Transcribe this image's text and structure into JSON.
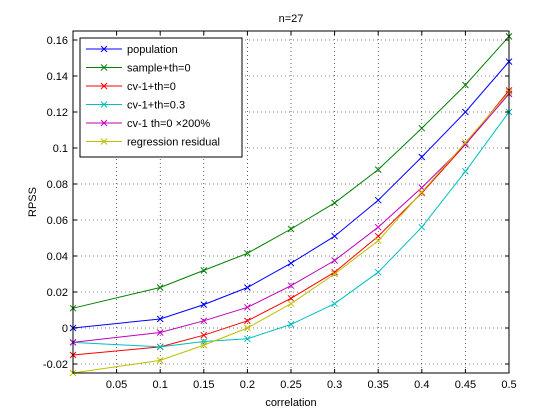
{
  "chart_data": {
    "type": "line",
    "title": "n=27",
    "xlabel": "correlation",
    "ylabel": "RPSS",
    "xlim": [
      0,
      0.5
    ],
    "ylim": [
      -0.025,
      0.165
    ],
    "grid": true,
    "legend_position": "top-left",
    "x_ticks": [
      "0.05",
      "0.1",
      "0.15",
      "0.2",
      "0.25",
      "0.3",
      "0.35",
      "0.4",
      "0.45",
      "0.5"
    ],
    "y_ticks": [
      "-0.02",
      "0",
      "0.02",
      "0.04",
      "0.06",
      "0.08",
      "0.1",
      "0.12",
      "0.14",
      "0.16"
    ],
    "x": [
      0,
      0.1,
      0.15,
      0.2,
      0.25,
      0.3,
      0.35,
      0.4,
      0.45,
      0.5
    ],
    "series": [
      {
        "name": "population",
        "color": "#0000ff",
        "values": [
          0,
          0.005,
          0.013,
          0.0225,
          0.036,
          0.051,
          0.071,
          0.095,
          0.12,
          0.148
        ]
      },
      {
        "name": "sample+th=0",
        "color": "#008000",
        "values": [
          0.011,
          0.0225,
          0.032,
          0.0415,
          0.055,
          0.0695,
          0.088,
          0.111,
          0.135,
          0.162
        ]
      },
      {
        "name": "cv-1+th=0",
        "color": "#ff0000",
        "values": [
          -0.015,
          -0.0105,
          -0.004,
          0.004,
          0.0165,
          0.031,
          0.051,
          0.075,
          0.102,
          0.132
        ]
      },
      {
        "name": "cv-1+th=0.3",
        "color": "#00bfbf",
        "values": [
          -0.008,
          -0.0105,
          -0.0075,
          -0.006,
          0.002,
          0.0135,
          0.031,
          0.056,
          0.087,
          0.12
        ]
      },
      {
        "name": "cv-1 th=0 ×200%",
        "color": "#bf00bf",
        "values": [
          -0.008,
          -0.0025,
          0.004,
          0.0115,
          0.0235,
          0.0375,
          0.056,
          0.078,
          0.102,
          0.13
        ]
      },
      {
        "name": "regression residual",
        "color": "#bfbf00",
        "values": [
          -0.025,
          -0.018,
          -0.0095,
          0,
          0.0135,
          0.03,
          0.0485,
          0.0755,
          0.103,
          0.131
        ]
      }
    ]
  }
}
